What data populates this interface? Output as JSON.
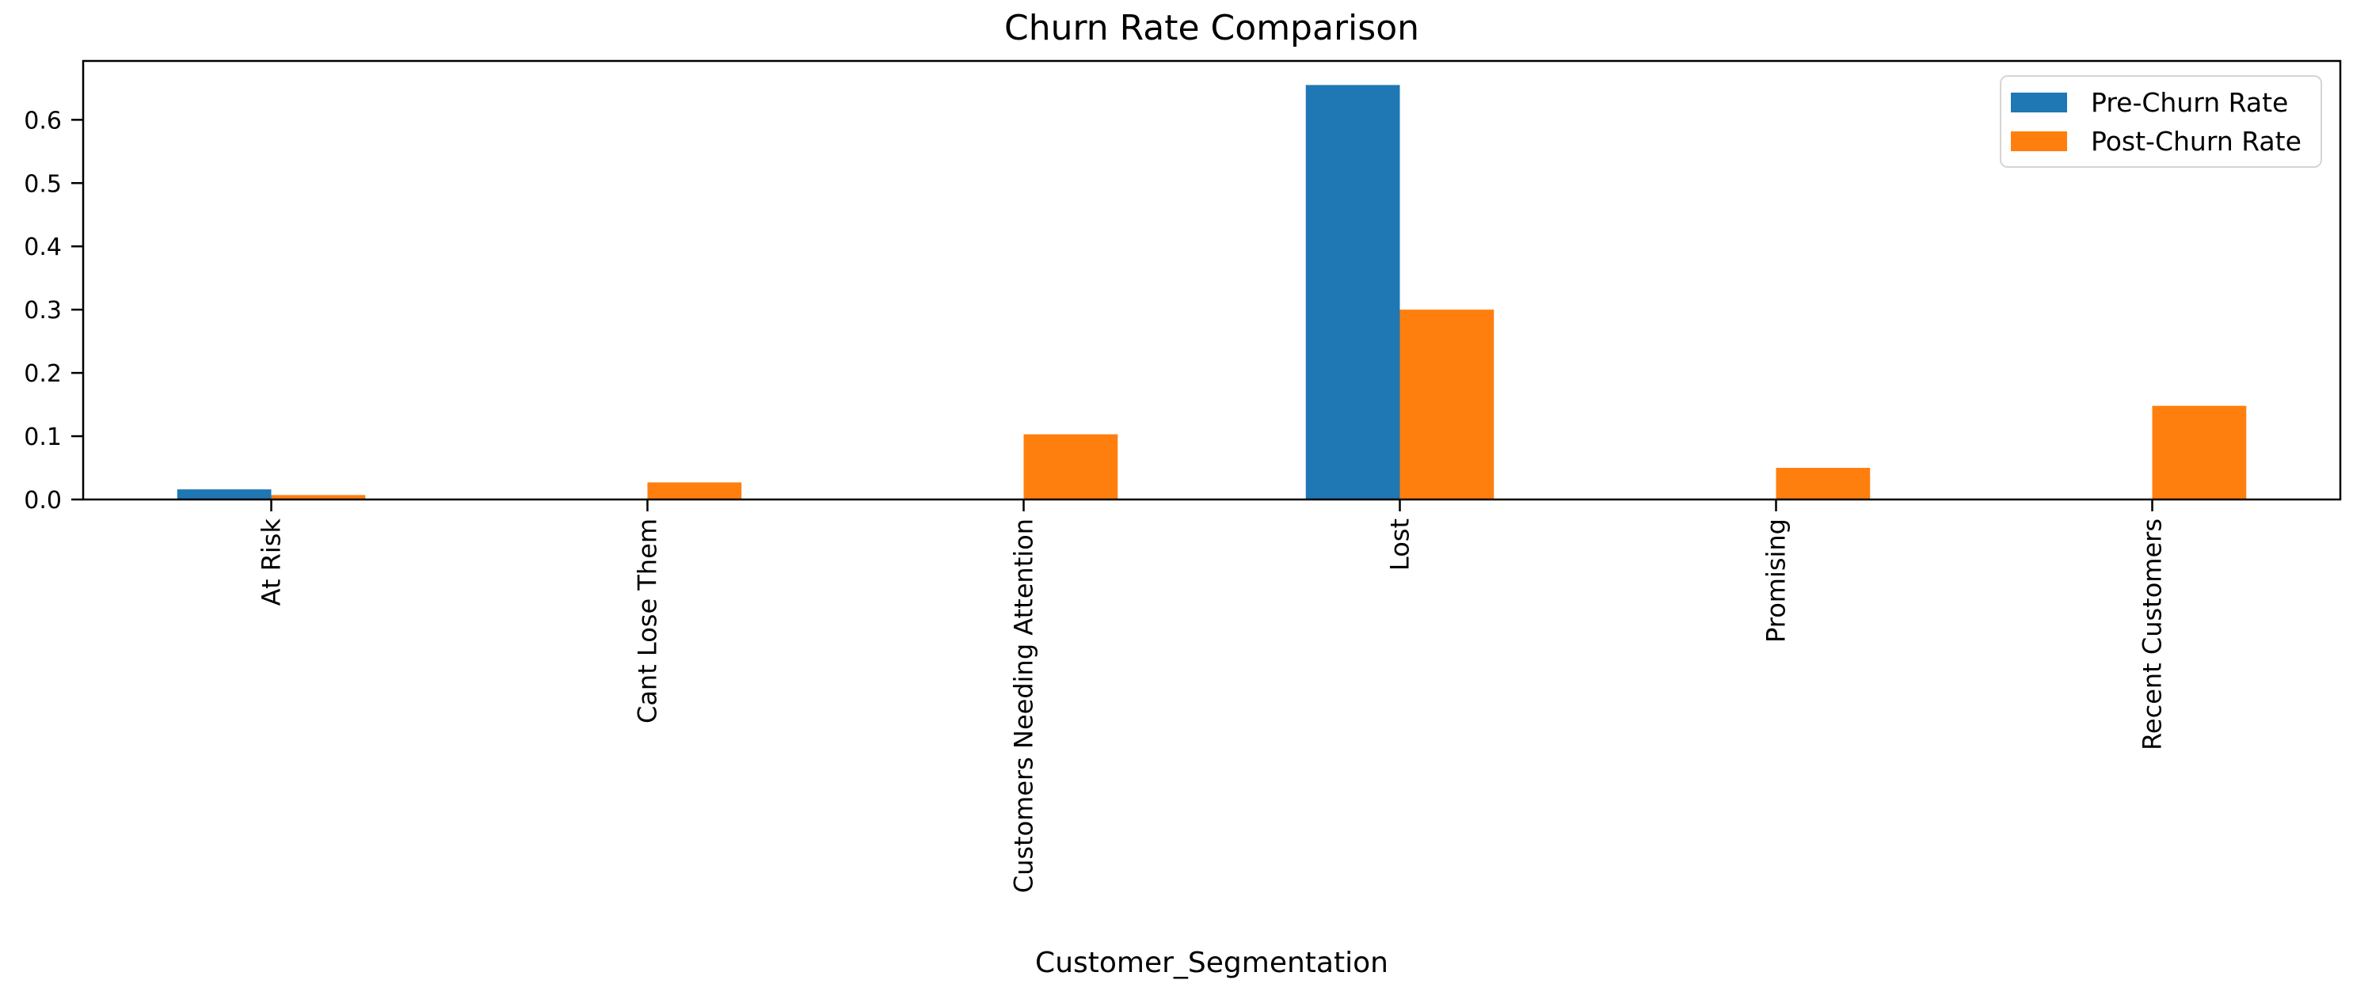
{
  "chart_data": {
    "type": "bar",
    "title": "Churn Rate Comparison",
    "xlabel": "Customer_Segmentation",
    "ylabel": "",
    "categories": [
      "At Risk",
      "Cant Lose Them",
      "Customers Needing Attention",
      "Lost",
      "Promising",
      "Recent Customers"
    ],
    "series": [
      {
        "name": "Pre-Churn Rate",
        "color": "#1f77b4",
        "values": [
          0.016,
          0.0,
          0.0,
          0.655,
          0.0,
          0.0
        ]
      },
      {
        "name": "Post-Churn Rate",
        "color": "#ff7f0e",
        "values": [
          0.007,
          0.027,
          0.103,
          0.3,
          0.05,
          0.148
        ]
      }
    ],
    "ylim": [
      0,
      0.693
    ],
    "yticks": [
      0.0,
      0.1,
      0.2,
      0.3,
      0.4,
      0.5,
      0.6
    ],
    "ytick_labels": [
      "0.0",
      "0.1",
      "0.2",
      "0.3",
      "0.4",
      "0.5",
      "0.6"
    ],
    "legend_position": "upper right",
    "grid": false,
    "bar_group_width_fraction": 0.5,
    "axis_color": "#000000",
    "background_color": "#ffffff"
  }
}
